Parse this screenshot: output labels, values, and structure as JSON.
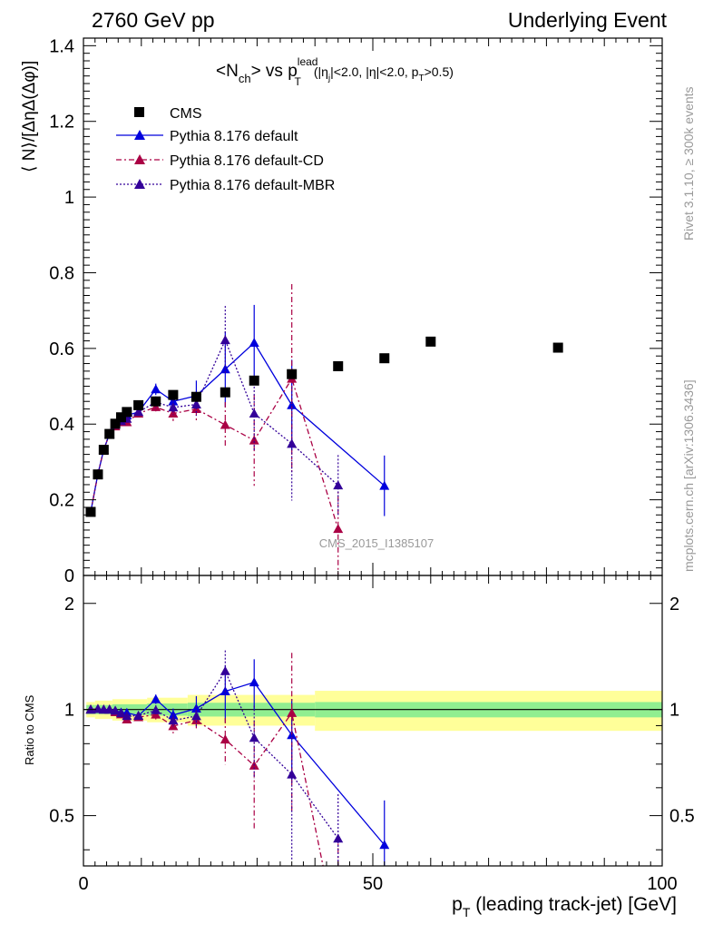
{
  "header": {
    "left": "2760 GeV pp",
    "right": "Underlying Event"
  },
  "side_labels": {
    "rivet": "Rivet 3.1.10, ≥ 300k events",
    "mcplots": "mcplots.cern.ch [arXiv:1306.3436]"
  },
  "watermark": "CMS_2015_I1385107",
  "chart_data": {
    "type": "line",
    "title": {
      "prefix": "<N",
      "prefix_sub": "ch",
      "middle": "> vs p",
      "p_sup": "lead",
      "p_sub": "T",
      "cut1": "(|η",
      "cut1_sub": "j",
      "cut2": "|<2.0, |η|<2.0, p",
      "cut2_sub": "T",
      "cut3": ">0.5)"
    },
    "xlabel": {
      "main": "p",
      "sub": "T",
      "rest": " (leading track-jet) [GeV]"
    },
    "ylabel": "⟨ N⟩/[ΔηΔ(Δφ)]",
    "ratio_ylabel": "Ratio to CMS",
    "xlim": [
      0,
      100
    ],
    "ylim": [
      0,
      1.42
    ],
    "ratio_ylim": [
      0.36,
      2.4
    ],
    "ratio_log": true,
    "x_ticks": [
      0,
      50,
      100
    ],
    "y_ticks": [
      0,
      0.2,
      0.4,
      0.6,
      0.8,
      1,
      1.2,
      1.4
    ],
    "ratio_ticks": [
      0.5,
      1,
      2
    ],
    "legend_position": "top-left",
    "colors": {
      "data": "#000000",
      "default": "#0000dd",
      "cd": "#aa0044",
      "mbr": "#330099",
      "band_inner": "#90ee90",
      "band_outer": "#ffff99"
    },
    "data_series": {
      "name": "CMS",
      "x": [
        1.25,
        2.5,
        3.5,
        4.5,
        5.5,
        6.5,
        7.5,
        9.5,
        12.5,
        15.5,
        19.5,
        24.5,
        29.5,
        36,
        44,
        52,
        60,
        82
      ],
      "y": [
        0.168,
        0.267,
        0.332,
        0.374,
        0.401,
        0.418,
        0.432,
        0.45,
        0.46,
        0.477,
        0.472,
        0.484,
        0.515,
        0.532,
        0.553,
        0.574,
        0.618,
        0.602
      ]
    },
    "series": [
      {
        "name": "Pythia 8.176 default",
        "color": "#0000dd",
        "dash": "",
        "x": [
          1.25,
          2.5,
          3.5,
          4.5,
          5.5,
          6.5,
          7.5,
          9.5,
          12.5,
          15.5,
          19.5,
          24.5,
          29.5,
          36,
          52
        ],
        "y": [
          0.168,
          0.268,
          0.332,
          0.374,
          0.398,
          0.41,
          0.423,
          0.432,
          0.492,
          0.46,
          0.475,
          0.545,
          0.615,
          0.45,
          0.237
        ],
        "err": [
          0.004,
          0.004,
          0.005,
          0.005,
          0.006,
          0.007,
          0.008,
          0.01,
          0.015,
          0.02,
          0.04,
          0.1,
          0.1,
          0.12,
          0.08
        ]
      },
      {
        "name": "Pythia 8.176 default-CD",
        "color": "#aa0044",
        "dash": "6,3,2,3",
        "x": [
          1.25,
          2.5,
          3.5,
          4.5,
          5.5,
          6.5,
          7.5,
          9.5,
          12.5,
          15.5,
          19.5,
          24.5,
          29.5,
          36,
          44
        ],
        "y": [
          0.168,
          0.268,
          0.332,
          0.374,
          0.394,
          0.405,
          0.405,
          0.428,
          0.445,
          0.428,
          0.44,
          0.398,
          0.357,
          0.52,
          0.123
        ],
        "err": [
          0.004,
          0.004,
          0.005,
          0.005,
          0.006,
          0.007,
          0.008,
          0.01,
          0.015,
          0.02,
          0.03,
          0.06,
          0.12,
          0.25,
          0.12
        ]
      },
      {
        "name": "Pythia 8.176 default-MBR",
        "color": "#330099",
        "dash": "2,2",
        "x": [
          1.25,
          2.5,
          3.5,
          4.5,
          5.5,
          6.5,
          7.5,
          9.5,
          12.5,
          15.5,
          19.5,
          24.5,
          29.5,
          36,
          44
        ],
        "y": [
          0.168,
          0.268,
          0.332,
          0.374,
          0.398,
          0.408,
          0.414,
          0.432,
          0.458,
          0.444,
          0.452,
          0.622,
          0.428,
          0.348,
          0.238
        ],
        "err": [
          0.004,
          0.004,
          0.005,
          0.005,
          0.006,
          0.007,
          0.008,
          0.01,
          0.015,
          0.02,
          0.03,
          0.09,
          0.1,
          0.15,
          0.08
        ]
      }
    ],
    "ratio_band": [
      {
        "x0": 0.5,
        "x1": 2,
        "inner": 0.03,
        "outer": 0.05
      },
      {
        "x0": 2,
        "x1": 5,
        "inner": 0.03,
        "outer": 0.06
      },
      {
        "x0": 5,
        "x1": 11,
        "inner": 0.035,
        "outer": 0.07
      },
      {
        "x0": 11,
        "x1": 18,
        "inner": 0.04,
        "outer": 0.08
      },
      {
        "x0": 18,
        "x1": 40,
        "inner": 0.045,
        "outer": 0.1
      },
      {
        "x0": 40,
        "x1": 100,
        "inner": 0.05,
        "outer": 0.13
      }
    ]
  }
}
